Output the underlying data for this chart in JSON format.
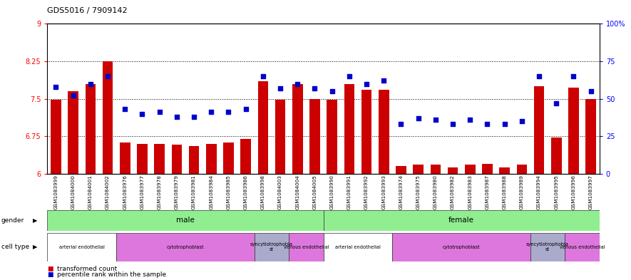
{
  "title": "GDS5016 / 7909142",
  "samples": [
    "GSM1083999",
    "GSM1084000",
    "GSM1084001",
    "GSM1084002",
    "GSM1083976",
    "GSM1083977",
    "GSM1083978",
    "GSM1083979",
    "GSM1083981",
    "GSM1083984",
    "GSM1083985",
    "GSM1083986",
    "GSM1083998",
    "GSM1084003",
    "GSM1084004",
    "GSM1084005",
    "GSM1083990",
    "GSM1083991",
    "GSM1083992",
    "GSM1083993",
    "GSM1083974",
    "GSM1083975",
    "GSM1083980",
    "GSM1083982",
    "GSM1083983",
    "GSM1083987",
    "GSM1083988",
    "GSM1083989",
    "GSM1083994",
    "GSM1083995",
    "GSM1083996",
    "GSM1083997"
  ],
  "bar_values": [
    7.48,
    7.65,
    7.8,
    8.25,
    6.63,
    6.6,
    6.6,
    6.58,
    6.55,
    6.6,
    6.62,
    6.7,
    7.85,
    7.48,
    7.8,
    7.5,
    7.48,
    7.8,
    7.68,
    7.68,
    6.15,
    6.18,
    6.18,
    6.12,
    6.18,
    6.2,
    6.12,
    6.18,
    7.75,
    6.72,
    7.72,
    7.5
  ],
  "dot_values": [
    58,
    52,
    60,
    65,
    43,
    40,
    41,
    38,
    38,
    41,
    41,
    43,
    65,
    57,
    60,
    57,
    55,
    65,
    60,
    62,
    33,
    37,
    36,
    33,
    36,
    33,
    33,
    35,
    65,
    47,
    65,
    55
  ],
  "ylim_left": [
    6.0,
    9.0
  ],
  "ylim_right": [
    0,
    100
  ],
  "yticks_left": [
    6.0,
    6.75,
    7.5,
    8.25,
    9.0
  ],
  "yticks_right": [
    0,
    25,
    50,
    75,
    100
  ],
  "bar_color": "#cc0000",
  "dot_color": "#0000cc",
  "gender_groups": [
    {
      "label": "male",
      "start": 0,
      "end": 15
    },
    {
      "label": "female",
      "start": 16,
      "end": 31
    }
  ],
  "cell_type_groups": [
    {
      "label": "arterial endothelial",
      "start": 0,
      "end": 3,
      "color": "#ffffff"
    },
    {
      "label": "cytotrophoblast",
      "start": 4,
      "end": 11,
      "color": "#dd77dd"
    },
    {
      "label": "syncytiotrophobla\nst",
      "start": 12,
      "end": 13,
      "color": "#aaaacc"
    },
    {
      "label": "venous endothelial",
      "start": 14,
      "end": 15,
      "color": "#dd77dd"
    },
    {
      "label": "arterial endothelial",
      "start": 16,
      "end": 19,
      "color": "#ffffff"
    },
    {
      "label": "cytotrophoblast",
      "start": 20,
      "end": 27,
      "color": "#dd77dd"
    },
    {
      "label": "syncytiotrophobla\nst",
      "start": 28,
      "end": 29,
      "color": "#aaaacc"
    },
    {
      "label": "venous endothelial",
      "start": 30,
      "end": 31,
      "color": "#dd77dd"
    }
  ]
}
